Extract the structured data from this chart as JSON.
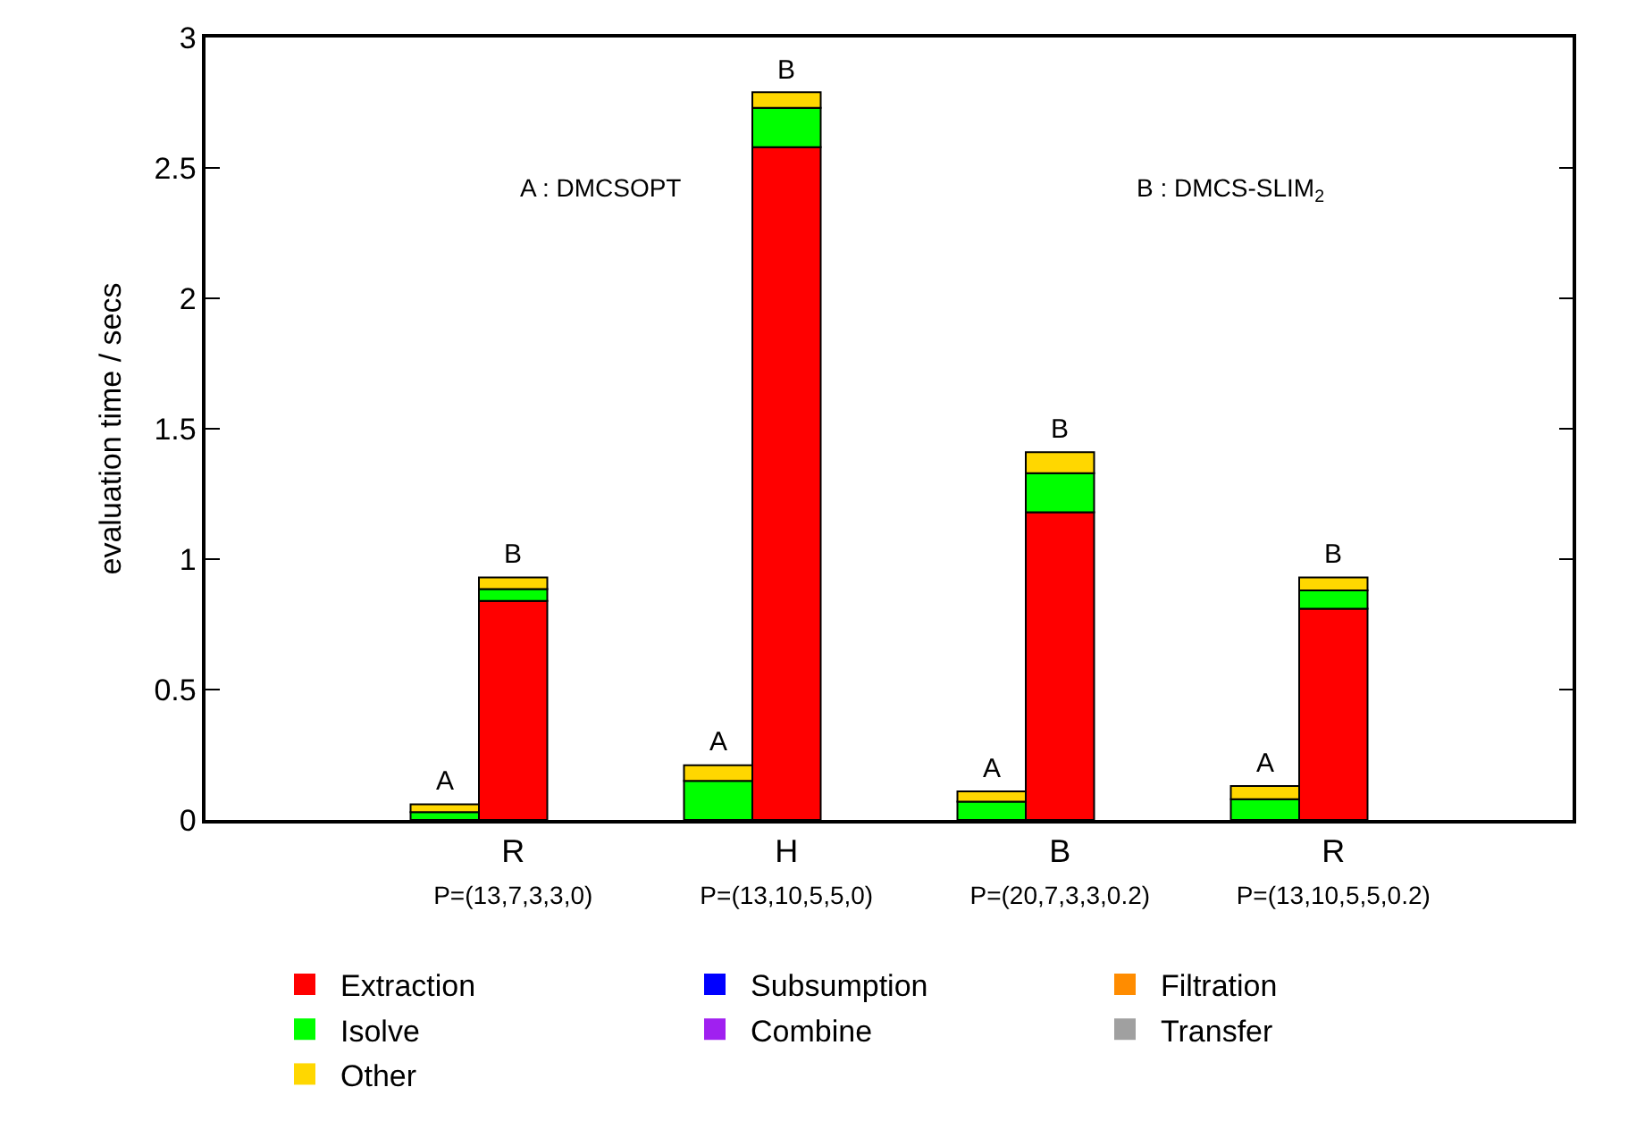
{
  "chart_data": {
    "type": "bar",
    "stacked": true,
    "ylabel": "evaluation time / secs",
    "categories": [
      null,
      null,
      null,
      null,
      "R\nP=(13,7,3,3,0)",
      null,
      null,
      null,
      "H\nP=(13,10,5,5,0)",
      null,
      null,
      null,
      "B\nP=(20,7,3,3,0.2)",
      null,
      null,
      null,
      "R\nP=(13,10,5,5,0.2)",
      null,
      null,
      null
    ],
    "series": [
      {
        "name": "Extraction",
        "color": "#ff0000",
        "values": [
          null,
          null,
          null,
          0,
          0.84,
          null,
          null,
          0,
          2.58,
          null,
          null,
          0,
          1.18,
          null,
          null,
          0,
          0.81,
          null,
          null,
          null
        ]
      },
      {
        "name": "Subsumption",
        "color": "#0000ff",
        "values": [
          null,
          null,
          null,
          0,
          0,
          null,
          null,
          0,
          0,
          null,
          null,
          0,
          0,
          null,
          null,
          0,
          0,
          null,
          null,
          null
        ]
      },
      {
        "name": "Filtration",
        "color": "#ff8c00",
        "values": [
          null,
          null,
          null,
          0,
          0,
          null,
          null,
          0,
          0,
          null,
          null,
          0,
          0,
          null,
          null,
          0,
          0,
          null,
          null,
          null
        ]
      },
      {
        "name": "Isolve",
        "color": "#00ff00",
        "values": [
          null,
          null,
          null,
          0.03,
          0.045,
          null,
          null,
          0.15,
          0.15,
          null,
          null,
          0.07,
          0.15,
          null,
          null,
          0.08,
          0.07,
          null,
          null,
          null
        ]
      },
      {
        "name": "Combine",
        "color": "#a020f0",
        "values": [
          null,
          null,
          null,
          0,
          0,
          null,
          null,
          0,
          0,
          null,
          null,
          0,
          0,
          null,
          null,
          0,
          0,
          null,
          null,
          null
        ]
      },
      {
        "name": "Transfer",
        "color": "#a0a0a0",
        "values": [
          null,
          null,
          null,
          0,
          0,
          null,
          null,
          0,
          0,
          null,
          null,
          0,
          0,
          null,
          null,
          0,
          0,
          null,
          null,
          null
        ]
      },
      {
        "name": "Other",
        "color": "#ffd700",
        "values": [
          null,
          null,
          null,
          0.03,
          0.045,
          null,
          null,
          0.06,
          0.06,
          null,
          null,
          0.04,
          0.08,
          null,
          null,
          0.05,
          0.05,
          null,
          null,
          null
        ],
        "value_labels": [
          null,
          null,
          null,
          "A",
          "B",
          null,
          null,
          "A",
          "B",
          null,
          null,
          "A",
          "B",
          null,
          null,
          "A",
          "B",
          null,
          null,
          null
        ]
      }
    ],
    "ylim": [
      0,
      3
    ],
    "yticks": [
      0,
      0.5,
      1,
      1.5,
      2,
      2.5,
      3
    ],
    "annotations": [
      "A : DMCSOPT",
      "B : DMCS-SLIM$_{2}$"
    ],
    "grid": false,
    "legend": "bottom"
  }
}
